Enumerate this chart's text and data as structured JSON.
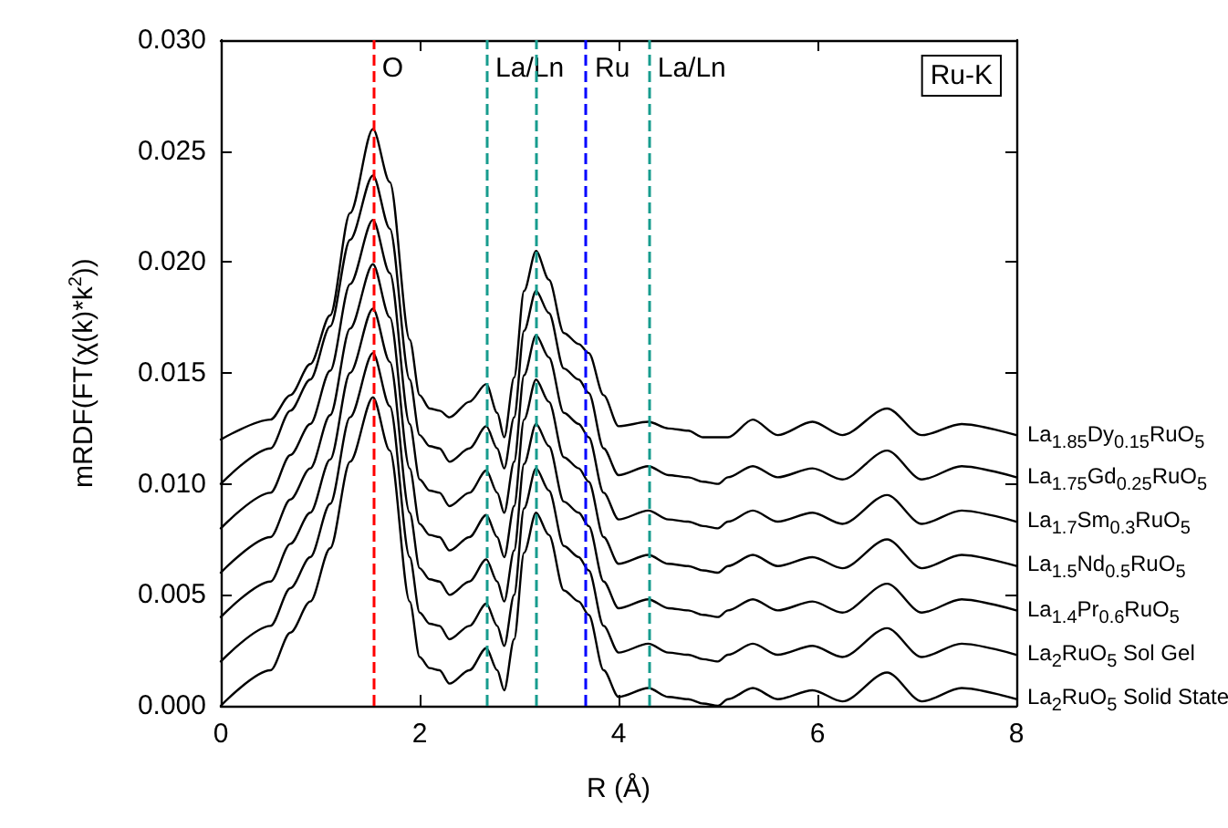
{
  "chart_data": {
    "type": "line",
    "xlabel": "R (Å)",
    "ylabel": "mRDF(FT(χ(k)*k$^{2}$))",
    "xlim": [
      0,
      8
    ],
    "xticks": [
      0,
      2,
      4,
      6,
      8
    ],
    "ylim": [
      0,
      0.03
    ],
    "yticks": [
      {
        "value": 0,
        "label": "0.000"
      },
      {
        "value": 0.005,
        "label": "0.005"
      },
      {
        "value": 0.01,
        "label": "0.010"
      },
      {
        "value": 0.015,
        "label": "0.015"
      },
      {
        "value": 0.02,
        "label": "0.020"
      },
      {
        "value": 0.025,
        "label": "0.025"
      },
      {
        "value": 0.03,
        "label": "0.030"
      }
    ],
    "grid": false,
    "legend": "right",
    "marker": "none",
    "line_style": "solid",
    "annotations": [
      "Ru-K"
    ],
    "ref_lines": [
      {
        "axis": "x",
        "value": 1.53,
        "label": "O",
        "color": "#ff0000",
        "line_style": "dashed"
      },
      {
        "axis": "x",
        "value": 2.67,
        "label": "La/Ln",
        "color": "#179c8e",
        "line_style": "dashed"
      },
      {
        "axis": "x",
        "value": 3.17,
        "label": null,
        "color": "#179c8e",
        "line_style": "dashed"
      },
      {
        "axis": "x",
        "value": 3.67,
        "label": "Ru",
        "color": "#0000ff",
        "line_style": "dashed"
      },
      {
        "axis": "x",
        "value": 4.3,
        "label": "La/Ln",
        "color": "#179c8e",
        "line_style": "dashed"
      }
    ],
    "x": [
      0,
      0.5,
      0.7,
      0.9,
      1.1,
      1.3,
      1.53,
      1.7,
      1.9,
      2.0,
      2.1,
      2.2,
      2.3,
      2.5,
      2.67,
      2.78,
      2.85,
      2.95,
      3.05,
      3.17,
      3.3,
      3.45,
      3.6,
      3.7,
      3.85,
      4.0,
      4.3,
      4.5,
      4.7,
      4.85,
      5.0,
      5.1,
      5.35,
      5.6,
      5.95,
      6.25,
      6.7,
      7.05,
      7.45,
      8
    ],
    "series": [
      {
        "name": "La$_{1.85}$Dy$_{0.15}$RuO$_{5}$",
        "color": "#000000",
        "values": [
          0.012,
          0.0129,
          0.014,
          0.0154,
          0.0176,
          0.0222,
          0.026,
          0.0236,
          0.0165,
          0.014,
          0.0134,
          0.0133,
          0.013,
          0.0137,
          0.0145,
          0.0132,
          0.0121,
          0.0148,
          0.0187,
          0.0205,
          0.0192,
          0.0168,
          0.0163,
          0.0159,
          0.014,
          0.0126,
          0.0128,
          0.0125,
          0.0124,
          0.0121,
          0.0121,
          0.0121,
          0.0129,
          0.0122,
          0.0128,
          0.0122,
          0.0134,
          0.0122,
          0.0127,
          0.0122
        ]
      },
      {
        "name": "La$_{1.75}$Gd$_{0.25}$RuO$_{5}$",
        "color": "#000000",
        "values": [
          0.01,
          0.0116,
          0.0133,
          0.0147,
          0.0171,
          0.021,
          0.0239,
          0.0215,
          0.0147,
          0.0122,
          0.0117,
          0.0116,
          0.011,
          0.0116,
          0.0126,
          0.0116,
          0.0107,
          0.013,
          0.0169,
          0.0187,
          0.0177,
          0.0152,
          0.0147,
          0.0141,
          0.0116,
          0.0104,
          0.0108,
          0.0104,
          0.0103,
          0.0101,
          0.01,
          0.0103,
          0.0108,
          0.0103,
          0.0107,
          0.0102,
          0.0115,
          0.0102,
          0.0108,
          0.0103
        ]
      },
      {
        "name": "La$_{1.7}$Sm$_{0.3}$RuO$_{5}$",
        "color": "#000000",
        "values": [
          0.008,
          0.0096,
          0.0113,
          0.0127,
          0.0151,
          0.019,
          0.0219,
          0.0195,
          0.0127,
          0.0102,
          0.0097,
          0.0096,
          0.009,
          0.0096,
          0.0106,
          0.0096,
          0.0087,
          0.011,
          0.0149,
          0.0167,
          0.0157,
          0.0132,
          0.0127,
          0.0121,
          0.0096,
          0.0084,
          0.0088,
          0.0084,
          0.0083,
          0.0081,
          0.008,
          0.0083,
          0.0088,
          0.0083,
          0.0087,
          0.0082,
          0.0095,
          0.0082,
          0.0088,
          0.0083
        ]
      },
      {
        "name": "La$_{1.5}$Nd$_{0.5}$RuO$_{5}$",
        "color": "#000000",
        "values": [
          0.006,
          0.0076,
          0.0093,
          0.0107,
          0.0131,
          0.017,
          0.0199,
          0.0175,
          0.0107,
          0.0082,
          0.0077,
          0.0076,
          0.007,
          0.0076,
          0.0086,
          0.0076,
          0.0067,
          0.009,
          0.0129,
          0.0147,
          0.0137,
          0.0112,
          0.0107,
          0.0101,
          0.0076,
          0.0064,
          0.0068,
          0.0064,
          0.0063,
          0.0061,
          0.006,
          0.0063,
          0.0068,
          0.0063,
          0.0067,
          0.0062,
          0.0075,
          0.0062,
          0.0068,
          0.0063
        ]
      },
      {
        "name": "La$_{1.4}$Pr$_{0.6}$RuO$_{5}$",
        "color": "#000000",
        "values": [
          0.004,
          0.0056,
          0.0073,
          0.0087,
          0.0111,
          0.015,
          0.0179,
          0.0155,
          0.0087,
          0.0062,
          0.0057,
          0.0056,
          0.005,
          0.0056,
          0.0066,
          0.0056,
          0.0047,
          0.007,
          0.0109,
          0.0127,
          0.0117,
          0.0092,
          0.0087,
          0.0081,
          0.0056,
          0.0044,
          0.0048,
          0.0044,
          0.0043,
          0.0041,
          0.004,
          0.0043,
          0.0048,
          0.0043,
          0.0047,
          0.0042,
          0.0055,
          0.0042,
          0.0048,
          0.0043
        ]
      },
      {
        "name": "La$_{2}$RuO$_{5}$ Sol Gel",
        "color": "#000000",
        "values": [
          0.002,
          0.0036,
          0.0053,
          0.0067,
          0.0091,
          0.013,
          0.0159,
          0.0135,
          0.0067,
          0.0042,
          0.0037,
          0.0036,
          0.003,
          0.0036,
          0.0046,
          0.0036,
          0.0027,
          0.005,
          0.0089,
          0.0107,
          0.0097,
          0.0072,
          0.0067,
          0.0061,
          0.0036,
          0.0024,
          0.0028,
          0.0024,
          0.0023,
          0.0021,
          0.002,
          0.0023,
          0.0028,
          0.0023,
          0.0027,
          0.0022,
          0.0035,
          0.0022,
          0.0028,
          0.0023
        ]
      },
      {
        "name": "La$_{2}$RuO$_{5}$ Solid State",
        "color": "#000000",
        "values": [
          0,
          0.0016,
          0.0033,
          0.0047,
          0.0071,
          0.011,
          0.0139,
          0.0115,
          0.0047,
          0.0022,
          0.0017,
          0.0016,
          0.001,
          0.0016,
          0.0026,
          0.0016,
          0.0007,
          0.003,
          0.0069,
          0.0087,
          0.0077,
          0.0052,
          0.0047,
          0.0041,
          0.0016,
          0.0004,
          0.0008,
          0.0004,
          0.0003,
          0.0001,
          0,
          0.0003,
          0.0008,
          0.0003,
          0.0007,
          0.0002,
          0.0015,
          0.0002,
          0.0008,
          0.0003
        ]
      }
    ]
  }
}
